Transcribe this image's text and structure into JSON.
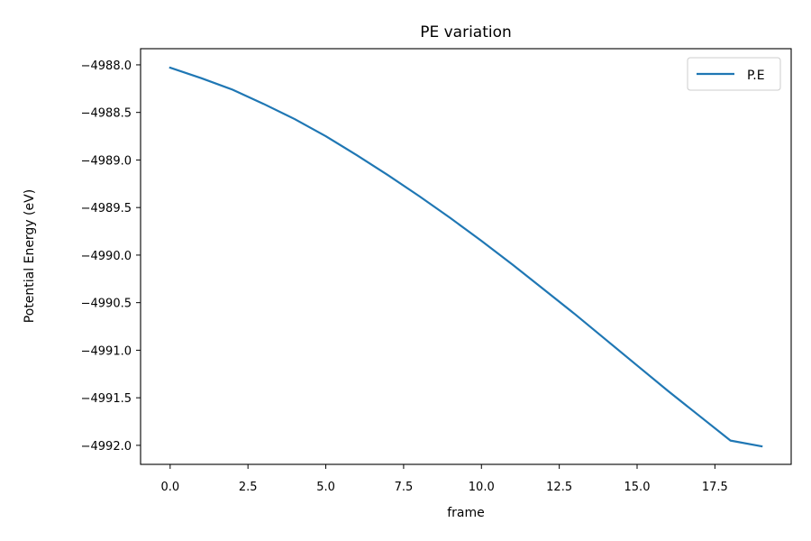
{
  "chart_data": {
    "type": "line",
    "title": "PE variation",
    "xlabel": "frame",
    "ylabel": "Potential Energy (eV)",
    "xlim": [
      -0.95,
      19.95
    ],
    "ylim": [
      -4992.2,
      -4987.83
    ],
    "xticks": [
      0.0,
      2.5,
      5.0,
      7.5,
      10.0,
      12.5,
      15.0,
      17.5
    ],
    "xtick_labels": [
      "0.0",
      "2.5",
      "5.0",
      "7.5",
      "10.0",
      "12.5",
      "15.0",
      "17.5"
    ],
    "yticks": [
      -4988.0,
      -4988.5,
      -4989.0,
      -4989.5,
      -4990.0,
      -4990.5,
      -4991.0,
      -4991.5,
      -4992.0
    ],
    "ytick_labels": [
      "−4988.0",
      "−4988.5",
      "−4989.0",
      "−4989.5",
      "−4990.0",
      "−4990.5",
      "−4991.0",
      "−4991.5",
      "−4992.0"
    ],
    "grid": false,
    "legend_position": "top-right",
    "series": [
      {
        "name": "P.E",
        "color": "#1f77b4",
        "x": [
          0,
          1,
          2,
          3,
          4,
          5,
          6,
          7,
          8,
          9,
          10,
          11,
          12,
          13,
          14,
          15,
          16,
          17,
          18,
          19
        ],
        "values": [
          -4988.03,
          -4988.14,
          -4988.26,
          -4988.41,
          -4988.57,
          -4988.75,
          -4988.95,
          -4989.16,
          -4989.38,
          -4989.61,
          -4989.85,
          -4990.1,
          -4990.36,
          -4990.62,
          -4990.89,
          -4991.16,
          -4991.43,
          -4991.69,
          -4991.95,
          -4992.01
        ]
      }
    ]
  }
}
